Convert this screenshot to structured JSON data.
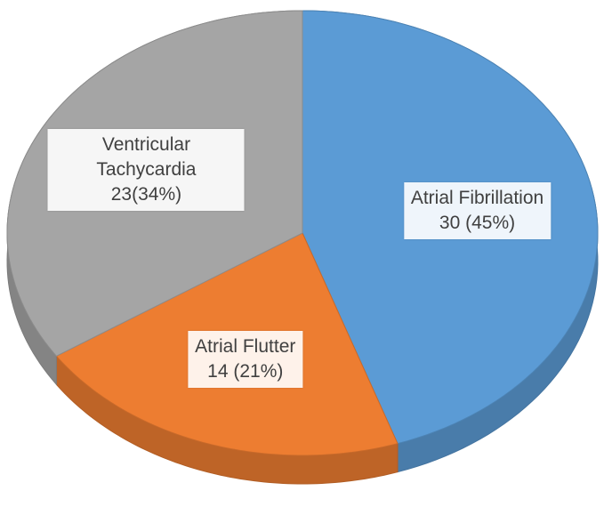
{
  "chart_data": {
    "type": "pie3d",
    "categories": [
      "Atrial Fibrillation",
      "Atrial Flutter",
      "Ventricular Tachycardia"
    ],
    "values": [
      30,
      14,
      23
    ],
    "value_labels": [
      "30 (45%)",
      "14 (21%)",
      "23(34%)"
    ],
    "colors": [
      "#5b9bd5",
      "#ed7d31",
      "#a5a5a5"
    ]
  }
}
